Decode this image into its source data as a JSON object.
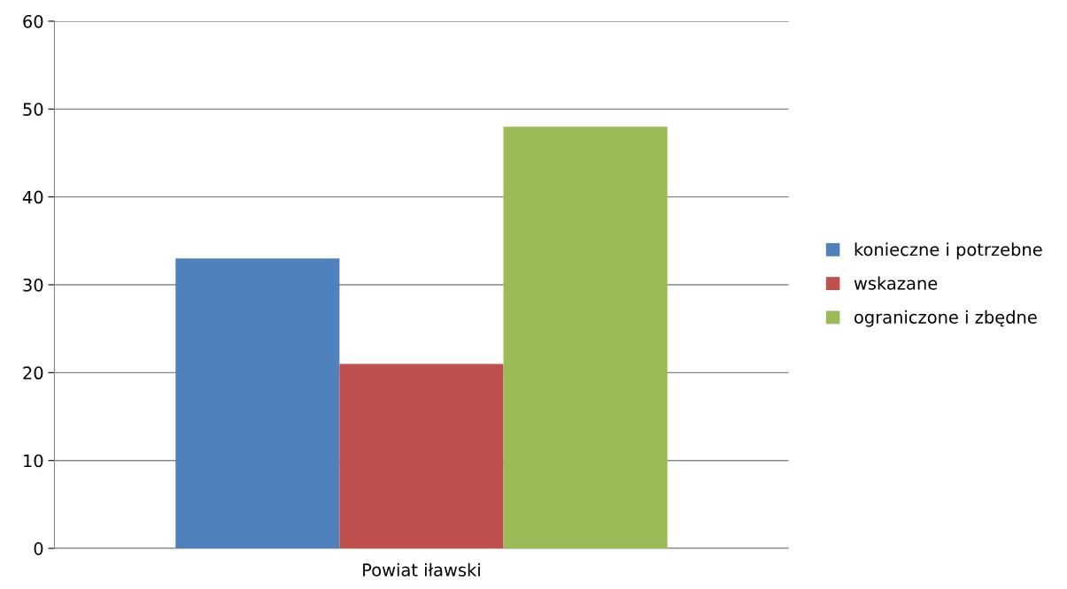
{
  "chart_data": {
    "type": "bar",
    "categories": [
      "Powiat iławski"
    ],
    "series": [
      {
        "name": "konieczne i potrzebne",
        "color": "#4f81bd",
        "values": [
          33
        ]
      },
      {
        "name": "wskazane",
        "color": "#c0504d",
        "values": [
          21
        ]
      },
      {
        "name": "ograniczone i zbędne",
        "color": "#9bbb59",
        "values": [
          48
        ]
      }
    ],
    "ylim": [
      0,
      60
    ],
    "yticks": [
      0,
      10,
      20,
      30,
      40,
      50,
      60
    ],
    "grid": "y",
    "legend": "right"
  }
}
